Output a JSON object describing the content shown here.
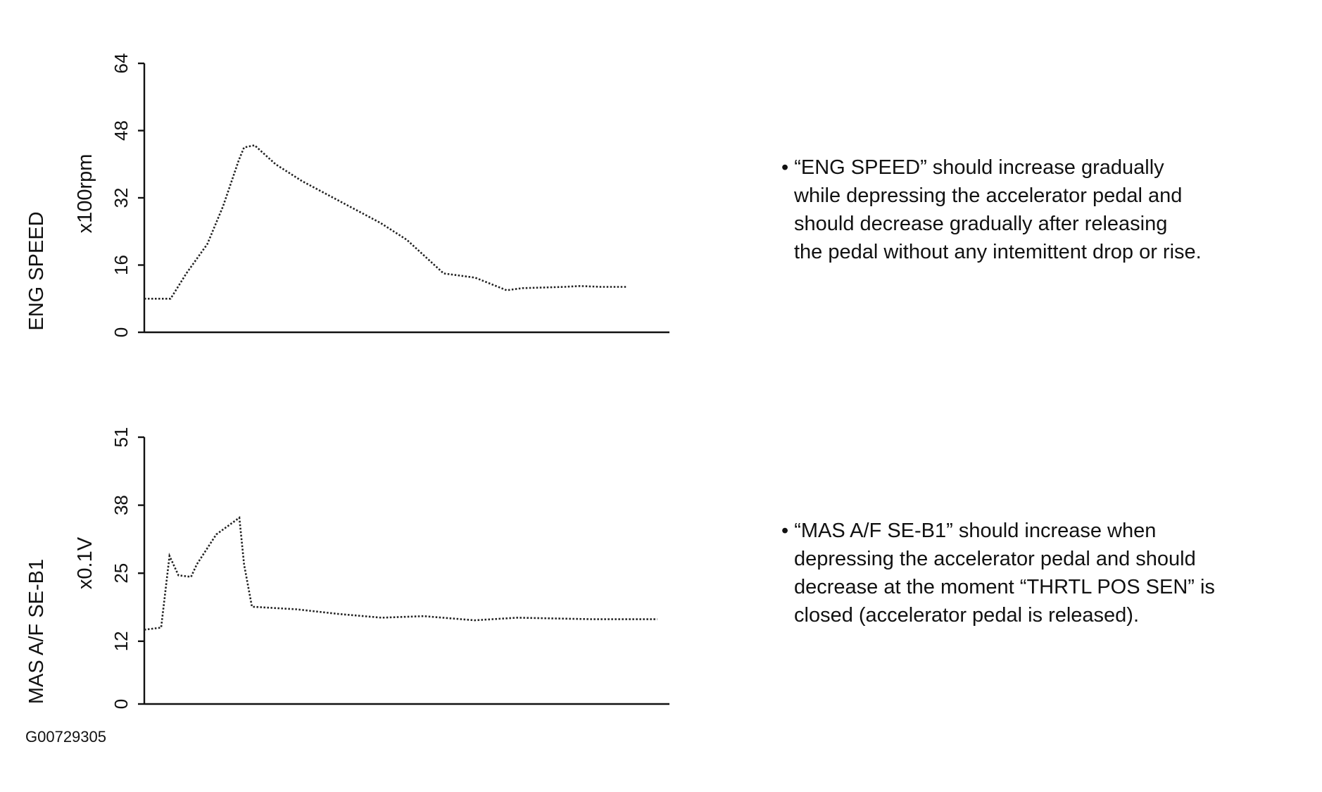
{
  "chart_data": [
    {
      "type": "line",
      "ylabel": "ENG SPEED",
      "yunit": "x100rpm",
      "x": [
        0,
        5,
        8,
        12,
        15,
        18,
        19,
        21,
        25,
        30,
        36,
        45,
        50,
        57,
        63,
        69,
        72,
        80,
        83,
        87,
        92
      ],
      "series": [
        {
          "color": "#222222",
          "values": [
            8,
            8,
            14,
            21,
            30,
            41,
            44,
            44.5,
            40,
            36,
            32,
            26,
            22,
            14,
            13,
            10,
            10.5,
            10.8,
            11,
            10.8,
            10.8
          ]
        }
      ],
      "xlim": [
        0,
        100
      ],
      "ylim": [
        0,
        64
      ],
      "yticks": [
        0,
        16,
        32,
        48,
        64
      ],
      "annotation": [
        "• “ENG SPEED” should increase gradually",
        "while depressing the accelerator pedal and",
        "should decrease gradually after releasing",
        "the pedal without any intemittent drop or rise."
      ]
    },
    {
      "type": "line",
      "ylabel": "MAS A/F SE-B1",
      "yunit": "x0.1V",
      "x": [
        0,
        3.2,
        4.8,
        6.5,
        8.9,
        10,
        13.7,
        18.1,
        19,
        20.5,
        29,
        37.1,
        45.2,
        53.2,
        62.9,
        71,
        85.5,
        97.7
      ],
      "series": [
        {
          "color": "#222222",
          "values": [
            14.2,
            14.6,
            28.3,
            24.6,
            24.3,
            26.7,
            32.4,
            35.6,
            26.7,
            18.6,
            18.1,
            17.2,
            16.5,
            16.8,
            16,
            16.5,
            16.2,
            16.2
          ]
        }
      ],
      "xlim": [
        0,
        100
      ],
      "ylim": [
        0,
        51
      ],
      "yticks": [
        0,
        12,
        25,
        38,
        51
      ],
      "annotation": [
        "• “MAS A/F SE-B1” should increase when",
        "depressing the accelerator pedal and  should",
        "decrease at the moment “THRTL POS SEN” is",
        "closed (accelerator pedal is released)."
      ]
    }
  ],
  "figure_id": "G00729305"
}
